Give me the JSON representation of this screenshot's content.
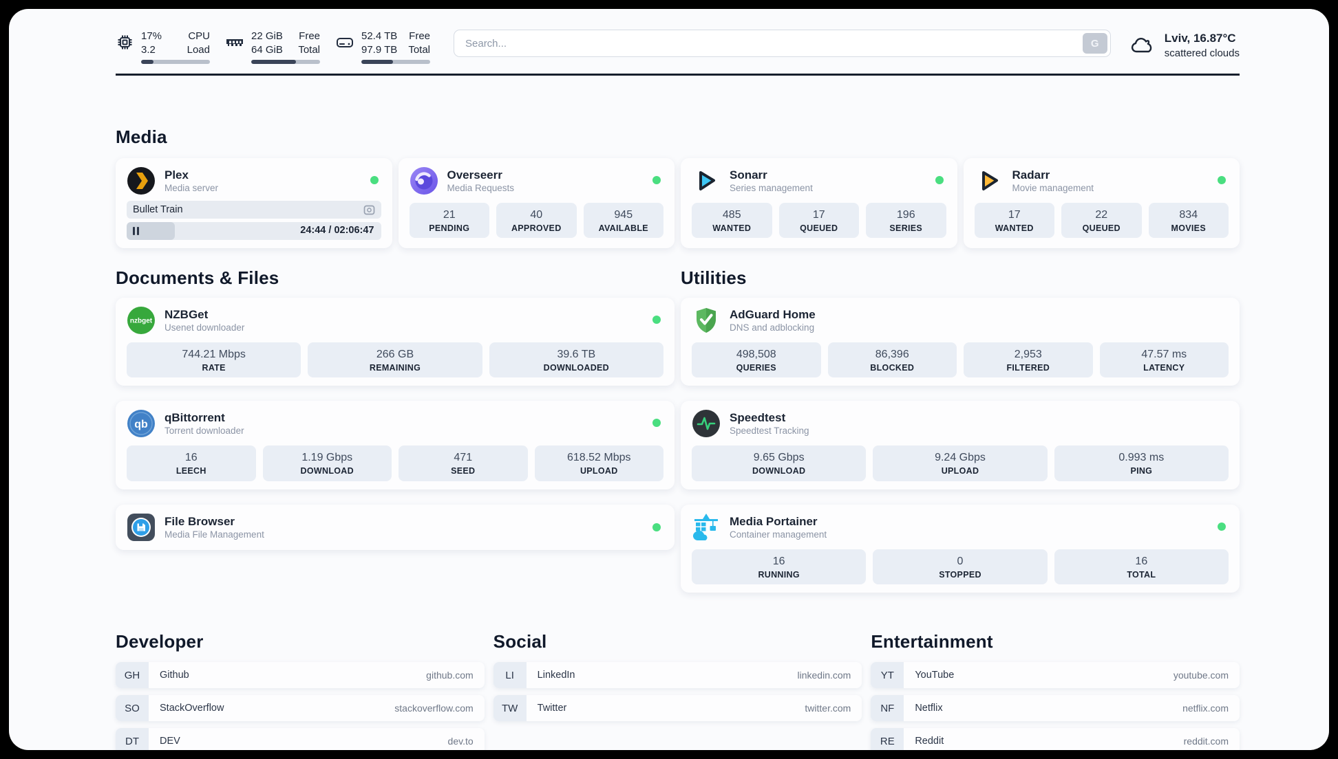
{
  "header": {
    "system_stats": [
      {
        "icon": "cpu-icon",
        "value1": "17%",
        "label1": "CPU",
        "value2": "3.2",
        "label2": "Load",
        "progress_pct": 18
      },
      {
        "icon": "ram-icon",
        "value1": "22 GiB",
        "label1": "Free",
        "value2": "64 GiB",
        "label2": "Total",
        "progress_pct": 65
      },
      {
        "icon": "disk-icon",
        "value1": "52.4 TB",
        "label1": "Free",
        "value2": "97.9 TB",
        "label2": "Total",
        "progress_pct": 46
      }
    ],
    "search": {
      "placeholder": "Search...",
      "button_label": "G"
    },
    "weather": {
      "location_temp": "Lviv, 16.87°C",
      "condition": "scattered clouds"
    }
  },
  "sections": {
    "media": {
      "title": "Media",
      "apps": [
        {
          "title": "Plex",
          "subtitle": "Media server",
          "online": true,
          "now_playing": {
            "title": "Bullet Train",
            "time_display": "24:44 / 02:06:47",
            "progress_pct": 19
          }
        },
        {
          "title": "Overseerr",
          "subtitle": "Media Requests",
          "online": true,
          "stats": [
            {
              "value": "21",
              "label": "PENDING"
            },
            {
              "value": "40",
              "label": "APPROVED"
            },
            {
              "value": "945",
              "label": "AVAILABLE"
            }
          ]
        },
        {
          "title": "Sonarr",
          "subtitle": "Series management",
          "online": true,
          "stats": [
            {
              "value": "485",
              "label": "WANTED"
            },
            {
              "value": "17",
              "label": "QUEUED"
            },
            {
              "value": "196",
              "label": "SERIES"
            }
          ]
        },
        {
          "title": "Radarr",
          "subtitle": "Movie management",
          "online": true,
          "stats": [
            {
              "value": "17",
              "label": "WANTED"
            },
            {
              "value": "22",
              "label": "QUEUED"
            },
            {
              "value": "834",
              "label": "MOVIES"
            }
          ]
        }
      ]
    },
    "documents": {
      "title": "Documents & Files",
      "apps": [
        {
          "title": "NZBGet",
          "subtitle": "Usenet downloader",
          "online": true,
          "stats": [
            {
              "value": "744.21 Mbps",
              "label": "RATE"
            },
            {
              "value": "266 GB",
              "label": "REMAINING"
            },
            {
              "value": "39.6 TB",
              "label": "DOWNLOADED"
            }
          ]
        },
        {
          "title": "qBittorrent",
          "subtitle": "Torrent downloader",
          "online": true,
          "stats": [
            {
              "value": "16",
              "label": "LEECH"
            },
            {
              "value": "1.19 Gbps",
              "label": "DOWNLOAD"
            },
            {
              "value": "471",
              "label": "SEED"
            },
            {
              "value": "618.52 Mbps",
              "label": "UPLOAD"
            }
          ]
        },
        {
          "title": "File Browser",
          "subtitle": "Media File Management",
          "online": true
        }
      ]
    },
    "utilities": {
      "title": "Utilities",
      "apps": [
        {
          "title": "AdGuard Home",
          "subtitle": "DNS and adblocking",
          "stats": [
            {
              "value": "498,508",
              "label": "QUERIES"
            },
            {
              "value": "86,396",
              "label": "BLOCKED"
            },
            {
              "value": "2,953",
              "label": "FILTERED"
            },
            {
              "value": "47.57 ms",
              "label": "LATENCY"
            }
          ]
        },
        {
          "title": "Speedtest",
          "subtitle": "Speedtest Tracking",
          "stats": [
            {
              "value": "9.65 Gbps",
              "label": "DOWNLOAD"
            },
            {
              "value": "9.24 Gbps",
              "label": "UPLOAD"
            },
            {
              "value": "0.993 ms",
              "label": "PING"
            }
          ]
        },
        {
          "title": "Media Portainer",
          "subtitle": "Container management",
          "online": true,
          "stats": [
            {
              "value": "16",
              "label": "RUNNING"
            },
            {
              "value": "0",
              "label": "STOPPED"
            },
            {
              "value": "16",
              "label": "TOTAL"
            }
          ]
        }
      ]
    },
    "bookmarks": [
      {
        "title": "Developer",
        "links": [
          {
            "abbr": "GH",
            "name": "Github",
            "url": "github.com"
          },
          {
            "abbr": "SO",
            "name": "StackOverflow",
            "url": "stackoverflow.com"
          },
          {
            "abbr": "DT",
            "name": "DEV",
            "url": "dev.to"
          }
        ]
      },
      {
        "title": "Social",
        "links": [
          {
            "abbr": "LI",
            "name": "LinkedIn",
            "url": "linkedin.com"
          },
          {
            "abbr": "TW",
            "name": "Twitter",
            "url": "twitter.com"
          }
        ]
      },
      {
        "title": "Entertainment",
        "links": [
          {
            "abbr": "YT",
            "name": "YouTube",
            "url": "youtube.com"
          },
          {
            "abbr": "NF",
            "name": "Netflix",
            "url": "netflix.com"
          },
          {
            "abbr": "RE",
            "name": "Reddit",
            "url": "reddit.com"
          }
        ]
      }
    ]
  },
  "colors": {
    "status_online": "#4ade80",
    "bar_fill": "#3a4458",
    "accent_ink": "#1b2433"
  }
}
